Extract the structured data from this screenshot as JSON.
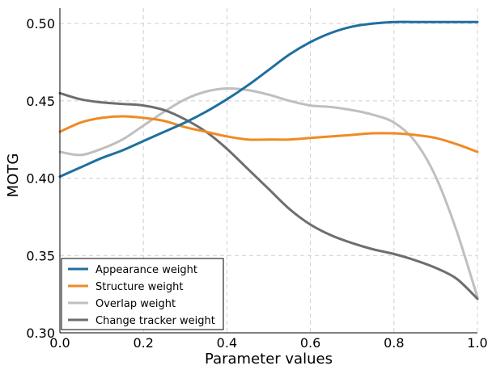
{
  "chart_data": {
    "type": "line",
    "title": "",
    "xlabel": "Parameter values",
    "ylabel": "MOTG",
    "xlim": [
      0.0,
      1.0
    ],
    "ylim": [
      0.3,
      0.51
    ],
    "grid": true,
    "legend_position": "bottom-left",
    "x_ticks": [
      {
        "value": 0.0,
        "label": "0.0"
      },
      {
        "value": 0.2,
        "label": "0.2"
      },
      {
        "value": 0.4,
        "label": "0.4"
      },
      {
        "value": 0.6,
        "label": "0.6"
      },
      {
        "value": 0.8,
        "label": "0.8"
      },
      {
        "value": 1.0,
        "label": "1.0"
      }
    ],
    "y_ticks": [
      {
        "value": 0.3,
        "label": "0.30"
      },
      {
        "value": 0.35,
        "label": "0.35"
      },
      {
        "value": 0.4,
        "label": "0.40"
      },
      {
        "value": 0.45,
        "label": "0.45"
      },
      {
        "value": 0.5,
        "label": "0.50"
      }
    ],
    "x": [
      0.0,
      0.05,
      0.1,
      0.15,
      0.2,
      0.25,
      0.3,
      0.35,
      0.4,
      0.45,
      0.5,
      0.55,
      0.6,
      0.65,
      0.7,
      0.75,
      0.8,
      0.85,
      0.9,
      0.95,
      1.0
    ],
    "series": [
      {
        "name": "Appearance weight",
        "color": "#1f6f9f",
        "values": [
          0.401,
          0.407,
          0.413,
          0.418,
          0.424,
          0.43,
          0.436,
          0.443,
          0.451,
          0.46,
          0.47,
          0.48,
          0.488,
          0.494,
          0.498,
          0.5,
          0.501,
          0.501,
          0.501,
          0.501,
          0.501
        ]
      },
      {
        "name": "Structure weight",
        "color": "#f08a24",
        "values": [
          0.43,
          0.436,
          0.439,
          0.44,
          0.439,
          0.437,
          0.433,
          0.43,
          0.427,
          0.425,
          0.425,
          0.425,
          0.426,
          0.427,
          0.428,
          0.429,
          0.429,
          0.428,
          0.426,
          0.422,
          0.417
        ]
      },
      {
        "name": "Overlap weight",
        "color": "#bfbfbf",
        "values": [
          0.417,
          0.415,
          0.419,
          0.425,
          0.434,
          0.443,
          0.451,
          0.456,
          0.458,
          0.457,
          0.454,
          0.45,
          0.447,
          0.446,
          0.444,
          0.441,
          0.436,
          0.424,
          0.401,
          0.366,
          0.323
        ]
      },
      {
        "name": "Change tracker weight",
        "color": "#6e6e6e",
        "values": [
          0.455,
          0.451,
          0.449,
          0.448,
          0.447,
          0.444,
          0.438,
          0.43,
          0.419,
          0.406,
          0.393,
          0.38,
          0.37,
          0.363,
          0.358,
          0.354,
          0.351,
          0.347,
          0.342,
          0.335,
          0.322
        ]
      }
    ]
  }
}
